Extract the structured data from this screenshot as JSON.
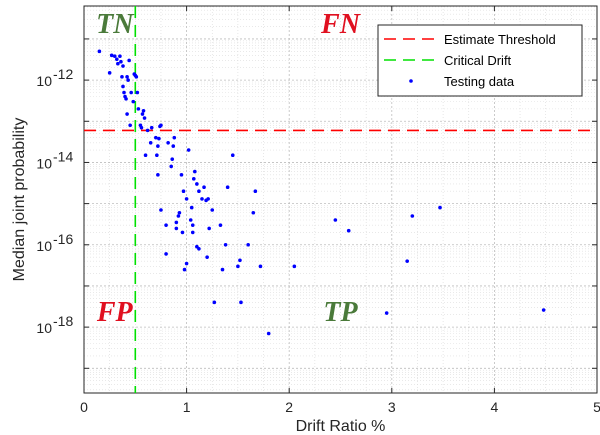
{
  "chart_data": {
    "type": "scatter",
    "xlabel": "Drift Ratio %",
    "ylabel": "Median joint probability",
    "xlim": [
      0,
      5
    ],
    "ylim_log10": [
      -19.6,
      -10.2
    ],
    "yscale": "log",
    "grid": true,
    "legend_position": "top-right",
    "x_ticks": [
      {
        "value": 0,
        "label": "0"
      },
      {
        "value": 1,
        "label": "1"
      },
      {
        "value": 2,
        "label": "2"
      },
      {
        "value": 3,
        "label": "3"
      },
      {
        "value": 4,
        "label": "4"
      },
      {
        "value": 5,
        "label": "5"
      }
    ],
    "y_ticks": [
      {
        "exp": -18,
        "base": "10",
        "sup": "-18"
      },
      {
        "exp": -16,
        "base": "10",
        "sup": "-16"
      },
      {
        "exp": -14,
        "base": "10",
        "sup": "-14"
      },
      {
        "exp": -12,
        "base": "10",
        "sup": "-12"
      }
    ],
    "estimate_threshold": 6e-14,
    "critical_drift": 0.5,
    "region_labels": [
      {
        "text": "TN",
        "color": "#4a7a3a",
        "x": 0.3,
        "y_log10": -10.7
      },
      {
        "text": "FN",
        "color": "#e01020",
        "x": 2.5,
        "y_log10": -10.7
      },
      {
        "text": "FP",
        "color": "#e01020",
        "x": 0.3,
        "y_log10": -17.7
      },
      {
        "text": "TP",
        "color": "#4a7a3a",
        "x": 2.5,
        "y_log10": -17.7
      }
    ],
    "legend": [
      {
        "label": "Estimate Threshold",
        "style": "dashed",
        "color": "#ff0000"
      },
      {
        "label": "Critical Drift",
        "style": "dashed",
        "color": "#00e000"
      },
      {
        "label": "Testing data",
        "style": "marker",
        "color": "#0000ff"
      }
    ],
    "series": [
      {
        "name": "Testing data",
        "color": "#0000ff",
        "points": [
          [
            0.15,
            5e-12
          ],
          [
            0.25,
            1.5e-12
          ],
          [
            0.27,
            4e-12
          ],
          [
            0.3,
            3.8e-12
          ],
          [
            0.32,
            3.2e-12
          ],
          [
            0.33,
            2.5e-12
          ],
          [
            0.35,
            3.8e-12
          ],
          [
            0.36,
            2.8e-12
          ],
          [
            0.37,
            1.2e-12
          ],
          [
            0.38,
            2.2e-12
          ],
          [
            0.38,
            7e-13
          ],
          [
            0.39,
            5e-13
          ],
          [
            0.4,
            4e-13
          ],
          [
            0.41,
            3.5e-13
          ],
          [
            0.42,
            1.2e-12
          ],
          [
            0.42,
            1.5e-13
          ],
          [
            0.43,
            1e-12
          ],
          [
            0.44,
            3e-12
          ],
          [
            0.45,
            8e-14
          ],
          [
            0.46,
            5e-13
          ],
          [
            0.48,
            3e-13
          ],
          [
            0.49,
            1.4e-12
          ],
          [
            0.5,
            1.3e-12
          ],
          [
            0.51,
            1.2e-12
          ],
          [
            0.52,
            5e-13
          ],
          [
            0.53,
            2e-13
          ],
          [
            0.55,
            8e-14
          ],
          [
            0.56,
            7e-14
          ],
          [
            0.57,
            1.5e-13
          ],
          [
            0.58,
            1.8e-13
          ],
          [
            0.59,
            1.2e-13
          ],
          [
            0.6,
            1.5e-14
          ],
          [
            0.62,
            6e-14
          ],
          [
            0.65,
            3e-14
          ],
          [
            0.66,
            7e-14
          ],
          [
            0.7,
            4e-14
          ],
          [
            0.71,
            1.5e-14
          ],
          [
            0.72,
            5e-15
          ],
          [
            0.72,
            2.5e-14
          ],
          [
            0.73,
            3.8e-14
          ],
          [
            0.74,
            7.5e-14
          ],
          [
            0.75,
            8e-14
          ],
          [
            0.75,
            7e-16
          ],
          [
            0.8,
            3e-16
          ],
          [
            0.8,
            6e-17
          ],
          [
            0.82,
            3e-14
          ],
          [
            0.85,
            8e-15
          ],
          [
            0.86,
            1.2e-14
          ],
          [
            0.87,
            2.5e-14
          ],
          [
            0.88,
            4e-14
          ],
          [
            0.9,
            3.5e-16
          ],
          [
            0.9,
            2.5e-16
          ],
          [
            0.92,
            5e-16
          ],
          [
            0.93,
            6e-16
          ],
          [
            0.95,
            5e-15
          ],
          [
            0.96,
            2e-16
          ],
          [
            0.97,
            2e-15
          ],
          [
            0.98,
            2.5e-17
          ],
          [
            1.0,
            3.5e-17
          ],
          [
            1.0,
            1.3e-15
          ],
          [
            1.02,
            2e-14
          ],
          [
            1.04,
            4e-16
          ],
          [
            1.05,
            8e-16
          ],
          [
            1.06,
            3e-16
          ],
          [
            1.06,
            2e-16
          ],
          [
            1.07,
            4e-15
          ],
          [
            1.08,
            6e-15
          ],
          [
            1.1,
            3e-15
          ],
          [
            1.1,
            9e-17
          ],
          [
            1.12,
            8e-17
          ],
          [
            1.12,
            2e-15
          ],
          [
            1.15,
            1.3e-15
          ],
          [
            1.17,
            2.5e-15
          ],
          [
            1.19,
            1.2e-15
          ],
          [
            1.2,
            5e-17
          ],
          [
            1.21,
            1.3e-15
          ],
          [
            1.22,
            2.5e-16
          ],
          [
            1.25,
            7e-16
          ],
          [
            1.27,
            4e-18
          ],
          [
            1.33,
            3e-16
          ],
          [
            1.35,
            2.5e-17
          ],
          [
            1.38,
            1e-16
          ],
          [
            1.4,
            2.5e-15
          ],
          [
            1.45,
            1.5e-14
          ],
          [
            1.5,
            3e-17
          ],
          [
            1.52,
            4.2e-17
          ],
          [
            1.53,
            4e-18
          ],
          [
            1.6,
            1e-16
          ],
          [
            1.65,
            6e-16
          ],
          [
            1.67,
            2e-15
          ],
          [
            1.72,
            3e-17
          ],
          [
            1.8,
            7e-19
          ],
          [
            2.05,
            3e-17
          ],
          [
            2.45,
            4e-16
          ],
          [
            2.58,
            2.2e-16
          ],
          [
            2.95,
            2.2e-18
          ],
          [
            3.15,
            4e-17
          ],
          [
            3.2,
            5e-16
          ],
          [
            3.47,
            8e-16
          ],
          [
            4.48,
            2.6e-18
          ]
        ]
      }
    ]
  }
}
